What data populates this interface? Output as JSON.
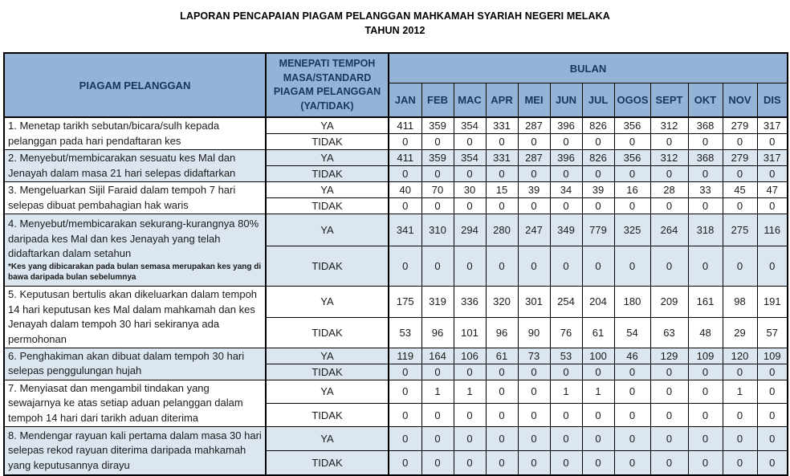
{
  "title": {
    "line1": "LAPORAN PENCAPAIAN PIAGAM PELANGGAN MAHKAMAH SYARIAH NEGERI MELAKA",
    "line2": "TAHUN 2012"
  },
  "table": {
    "col1_header": "PIAGAM PELANGGAN",
    "col2_header": "MENEPATI TEMPOH MASA/STANDARD PIAGAM PELANGGAN (YA/TIDAK)",
    "months_header": "BULAN",
    "months": [
      "JAN",
      "FEB",
      "MAC",
      "APR",
      "MEI",
      "JUN",
      "JUL",
      "OGOS",
      "SEPT",
      "OKT",
      "NOV",
      "DIS"
    ],
    "ya_label": "YA",
    "tidak_label": "TIDAK",
    "items": [
      {
        "label": "1. Menetap tarikh sebutan/bicara/sulh kepada pelanggan pada hari pendaftaran kes",
        "ya": [
          411,
          359,
          354,
          331,
          287,
          396,
          826,
          356,
          312,
          368,
          279,
          317
        ],
        "tidak": [
          0,
          0,
          0,
          0,
          0,
          0,
          0,
          0,
          0,
          0,
          0,
          0
        ]
      },
      {
        "label": "2. Menyebut/membicarakan sesuatu kes Mal dan Jenayah dalam masa 21 hari selepas didaftarkan",
        "ya": [
          411,
          359,
          354,
          331,
          287,
          396,
          826,
          356,
          312,
          368,
          279,
          317
        ],
        "tidak": [
          0,
          0,
          0,
          0,
          0,
          0,
          0,
          0,
          0,
          0,
          0,
          0
        ]
      },
      {
        "label": "3. Mengeluarkan Sijil Faraid dalam tempoh 7 hari selepas dibuat pembahagian hak waris",
        "ya": [
          40,
          70,
          30,
          15,
          39,
          34,
          39,
          16,
          28,
          33,
          45,
          47
        ],
        "tidak": [
          0,
          0,
          0,
          0,
          0,
          0,
          0,
          0,
          0,
          0,
          0,
          0
        ]
      },
      {
        "label": "4. Menyebut/membicarakan sekurang-kurangnya 80% daripada kes Mal dan kes Jenayah yang telah didaftarkan dalam setahun",
        "footnote": "*Kes yang dibicarakan pada bulan semasa merupakan kes yang di bawa daripada bulan sebelumnya",
        "ya": [
          341,
          310,
          294,
          280,
          247,
          349,
          779,
          325,
          264,
          318,
          275,
          116
        ],
        "tidak": [
          0,
          0,
          0,
          0,
          0,
          0,
          0,
          0,
          0,
          0,
          0,
          0
        ]
      },
      {
        "label": "5. Keputusan bertulis akan dikeluarkan dalam tempoh 14 hari keputusan kes Mal dalam mahkamah dan kes Jenayah dalam tempoh 30 hari sekiranya ada permohonan",
        "ya": [
          175,
          319,
          336,
          320,
          301,
          254,
          204,
          180,
          209,
          161,
          98,
          191
        ],
        "tidak": [
          53,
          96,
          101,
          96,
          90,
          76,
          61,
          54,
          63,
          48,
          29,
          57
        ]
      },
      {
        "label": "6. Penghakiman akan dibuat dalam tempoh 30 hari selepas penggulungan hujah",
        "ya": [
          119,
          164,
          106,
          61,
          73,
          53,
          100,
          46,
          129,
          109,
          120,
          109
        ],
        "tidak": [
          0,
          0,
          0,
          0,
          0,
          0,
          0,
          0,
          0,
          0,
          0,
          0
        ]
      },
      {
        "label": "7. Menyiasat dan mengambil tindakan yang sewajarnya ke atas setiap aduan pelanggan dalam tempoh 14 hari dari tarikh aduan diterima",
        "ya": [
          0,
          1,
          1,
          0,
          0,
          1,
          1,
          0,
          0,
          0,
          1,
          0
        ],
        "tidak": [
          0,
          0,
          0,
          0,
          0,
          0,
          0,
          0,
          0,
          0,
          0,
          0
        ]
      },
      {
        "label": "8. Mendengar rayuan kali pertama dalam masa 30 hari selepas rekod rayuan diterima daripada mahkamah yang keputusannya dirayu",
        "ya": [
          0,
          0,
          0,
          0,
          0,
          0,
          0,
          0,
          0,
          0,
          0,
          0
        ],
        "tidak": [
          0,
          0,
          0,
          0,
          0,
          0,
          0,
          0,
          0,
          0,
          0,
          0
        ]
      }
    ]
  },
  "colors": {
    "header_bg": "#95B3D7",
    "alt_row_bg": "#DCE6F1",
    "header_text": "#17375D",
    "border": "#000000"
  }
}
